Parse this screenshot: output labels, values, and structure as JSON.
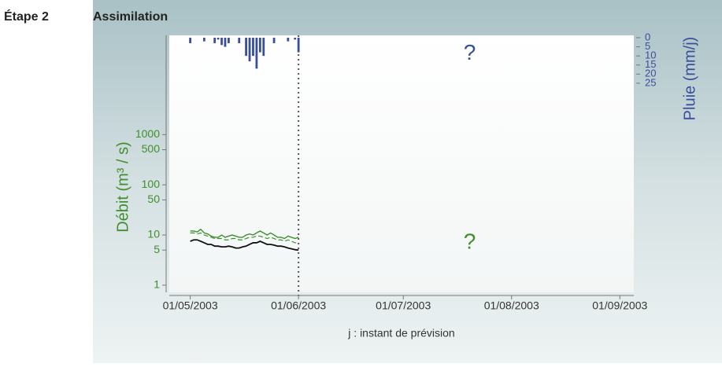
{
  "chart_data": {
    "type": "line",
    "step": "Étape 2",
    "title": "Assimilation",
    "xlabel": "j : instant de prévision",
    "ylabel": "Débit (m³ / s)",
    "y2label": "Pluie (mm/j)",
    "x": [
      "2003-05-01",
      "2003-05-02",
      "2003-05-03",
      "2003-05-04",
      "2003-05-05",
      "2003-05-06",
      "2003-05-07",
      "2003-05-08",
      "2003-05-09",
      "2003-05-10",
      "2003-05-11",
      "2003-05-12",
      "2003-05-13",
      "2003-05-14",
      "2003-05-15",
      "2003-05-16",
      "2003-05-17",
      "2003-05-18",
      "2003-05-19",
      "2003-05-20",
      "2003-05-21",
      "2003-05-22",
      "2003-05-23",
      "2003-05-24",
      "2003-05-25",
      "2003-05-26",
      "2003-05-27",
      "2003-05-28",
      "2003-05-29",
      "2003-05-30",
      "2003-05-31",
      "2003-06-01"
    ],
    "series": [
      {
        "color": "#3f8f2f",
        "dash": false,
        "width": 1.4,
        "values": [
          12,
          12,
          11.5,
          13,
          11,
          10.5,
          9.5,
          9,
          9,
          10,
          9,
          9.5,
          10,
          9.5,
          9,
          9,
          10,
          10.5,
          10,
          11,
          12,
          11,
          10,
          11,
          10,
          9,
          9,
          8.5,
          9.5,
          9,
          8.5,
          9
        ]
      },
      {
        "color": "#3f8f2f",
        "dash": true,
        "width": 1.2,
        "values": [
          11,
          11,
          10.5,
          11,
          10,
          9.5,
          9,
          8.5,
          8.5,
          8.5,
          8,
          8,
          8.5,
          8.5,
          8,
          8,
          8.5,
          9,
          9,
          9.5,
          9.5,
          9,
          8.5,
          9,
          8.5,
          8,
          8,
          7.5,
          8,
          7.5,
          7,
          7
        ]
      },
      {
        "color": "#111111",
        "dash": false,
        "width": 1.8,
        "values": [
          7.5,
          8,
          8,
          7.5,
          7,
          6.5,
          6.5,
          6,
          6,
          5.8,
          5.8,
          6,
          5.8,
          5.5,
          5.5,
          5.8,
          6,
          6.5,
          7,
          7,
          7.5,
          7,
          6.5,
          6.5,
          6.3,
          6,
          6,
          5.8,
          5.5,
          5.3,
          5.1,
          5
        ]
      },
      {
        "type": "bar",
        "axis": "y2",
        "color": "#3a4f9a",
        "values": [
          3,
          0,
          0,
          0,
          2,
          0,
          0,
          3,
          1,
          4,
          5,
          3,
          0,
          0,
          3,
          0,
          10,
          13,
          10,
          17,
          8,
          10,
          0,
          0,
          3,
          0,
          0,
          0,
          2,
          0,
          1,
          8
        ]
      }
    ],
    "xlim": [
      "2003-04-25",
      "2003-09-05"
    ],
    "xticks": [
      {
        "value": "2003-05-01",
        "label": "01/05/2003"
      },
      {
        "value": "2003-06-01",
        "label": "01/06/2003"
      },
      {
        "value": "2003-07-01",
        "label": "01/07/2003"
      },
      {
        "value": "2003-08-01",
        "label": "01/08/2003"
      },
      {
        "value": "2003-09-01",
        "label": "01/09/2003"
      }
    ],
    "ylim": [
      0.72,
      95000
    ],
    "yscale": "log",
    "yticks": [
      1,
      5,
      10,
      50,
      100,
      500,
      1000
    ],
    "y2lim": [
      140,
      -1.3
    ],
    "y2ticks": [
      0,
      5,
      10,
      15,
      20,
      25
    ],
    "forecast_line": "2003-06-01",
    "annotations": [
      {
        "text": "?",
        "x": "2003-07-20",
        "y2": 9,
        "color": "#3a4f9a"
      },
      {
        "text": "?",
        "x": "2003-07-20",
        "y": 7,
        "color": "#3f8f2f"
      }
    ]
  }
}
